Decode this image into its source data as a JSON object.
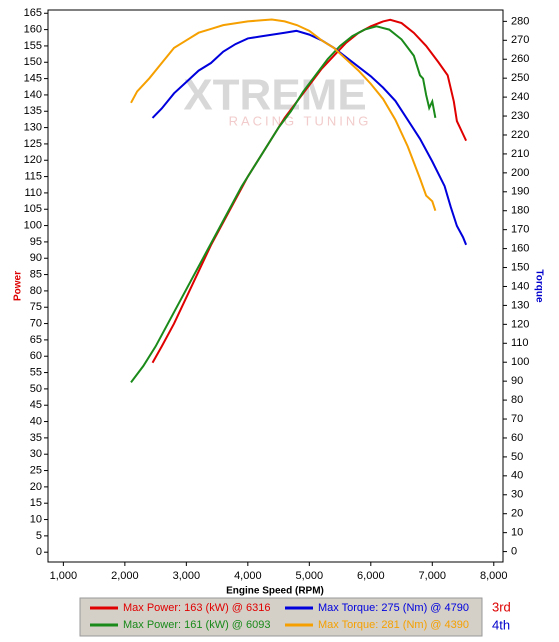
{
  "chart_data": {
    "type": "line",
    "x_label": "Engine Speed (RPM)",
    "y_label": "Power",
    "y2_label": "Torque",
    "y_label_color": "#dd0000",
    "y2_label_color": "#0000cc",
    "watermark": [
      "XTREME",
      "RACING TUNING"
    ],
    "xlim": [
      750,
      8150
    ],
    "xticks": [
      {
        "value": 1000,
        "label": "1,000"
      },
      {
        "value": 2000,
        "label": "2,000"
      },
      {
        "value": 3000,
        "label": "3,000"
      },
      {
        "value": 4000,
        "label": "4,000"
      },
      {
        "value": 5000,
        "label": "5,000"
      },
      {
        "value": 6000,
        "label": "6,000"
      },
      {
        "value": 7000,
        "label": "7,000"
      },
      {
        "value": 8000,
        "label": "8,000"
      }
    ],
    "ylim": [
      -3,
      166
    ],
    "yticks": [
      0,
      5,
      10,
      15,
      20,
      25,
      30,
      35,
      40,
      45,
      50,
      55,
      60,
      65,
      70,
      75,
      80,
      85,
      90,
      95,
      100,
      105,
      110,
      115,
      120,
      125,
      130,
      135,
      140,
      145,
      150,
      155,
      160,
      165
    ],
    "y2lim": [
      -5.5,
      286
    ],
    "y2ticks": [
      0,
      10,
      20,
      30,
      40,
      50,
      60,
      70,
      80,
      90,
      100,
      110,
      120,
      130,
      140,
      150,
      160,
      170,
      180,
      190,
      200,
      210,
      220,
      230,
      240,
      250,
      260,
      270,
      280
    ],
    "legend_groups": [
      {
        "label": "3rd",
        "color": "#dd0000"
      },
      {
        "label": "4th",
        "color": "#0000cc"
      }
    ],
    "series": [
      {
        "name": "Max Power: 163 (kW) @ 6316",
        "color": "#e00000",
        "axis": "y",
        "x": [
          2450,
          2600,
          2800,
          3000,
          3200,
          3400,
          3600,
          3800,
          4000,
          4200,
          4400,
          4600,
          4800,
          5000,
          5200,
          5400,
          5600,
          5800,
          6000,
          6200,
          6316,
          6500,
          6700,
          6900,
          7100,
          7250,
          7350,
          7400,
          7500,
          7550
        ],
        "values": [
          58,
          63,
          70,
          78,
          86,
          94,
          101,
          108,
          115,
          121,
          127,
          133,
          138,
          143,
          148,
          152,
          156,
          159,
          161,
          162.5,
          163,
          162,
          159,
          155,
          150,
          146,
          138,
          132,
          128,
          126
        ]
      },
      {
        "name": "Max Power: 161 (kW) @ 6093",
        "color": "#1a8a1a",
        "axis": "y",
        "x": [
          2100,
          2300,
          2500,
          2700,
          2900,
          3100,
          3300,
          3500,
          3700,
          3900,
          4100,
          4300,
          4500,
          4700,
          4900,
          5100,
          5300,
          5500,
          5700,
          5900,
          6093,
          6300,
          6500,
          6700,
          6800,
          6850,
          6900,
          6950,
          7000,
          7050
        ],
        "values": [
          52,
          57,
          63,
          70,
          77,
          84,
          91,
          98,
          105,
          112,
          118,
          124,
          130,
          135,
          141,
          146,
          151,
          155,
          158,
          160,
          161,
          160,
          157,
          152,
          146,
          145,
          140,
          136,
          138,
          133
        ]
      },
      {
        "name": "Max Torque: 275 (Nm) @ 4790",
        "color": "#0000dd",
        "axis": "y2",
        "x": [
          2450,
          2600,
          2800,
          3000,
          3200,
          3400,
          3600,
          3800,
          4000,
          4200,
          4400,
          4600,
          4790,
          5000,
          5200,
          5400,
          5600,
          5800,
          6000,
          6200,
          6400,
          6600,
          6800,
          7000,
          7200,
          7300,
          7400,
          7500,
          7550
        ],
        "values": [
          229,
          234,
          242,
          248,
          254,
          258,
          264,
          268,
          271,
          272,
          273,
          274,
          275,
          273,
          270,
          266,
          261,
          256,
          251,
          245,
          238,
          228,
          218,
          206,
          193,
          182,
          172,
          166,
          162
        ]
      },
      {
        "name": "Max Torque: 281 (Nm) @ 4390",
        "color": "#f5a000",
        "axis": "y2",
        "x": [
          2100,
          2200,
          2400,
          2600,
          2800,
          3000,
          3200,
          3400,
          3600,
          3800,
          4000,
          4200,
          4390,
          4600,
          4800,
          5000,
          5200,
          5400,
          5600,
          5800,
          6000,
          6200,
          6400,
          6600,
          6800,
          6900,
          7000,
          7050
        ],
        "values": [
          237,
          243,
          250,
          258,
          266,
          270,
          274,
          276,
          278,
          279,
          280,
          280.5,
          281,
          280,
          278,
          275,
          270,
          266,
          260,
          254,
          247,
          239,
          228,
          214,
          197,
          188,
          185,
          180
        ]
      }
    ]
  }
}
